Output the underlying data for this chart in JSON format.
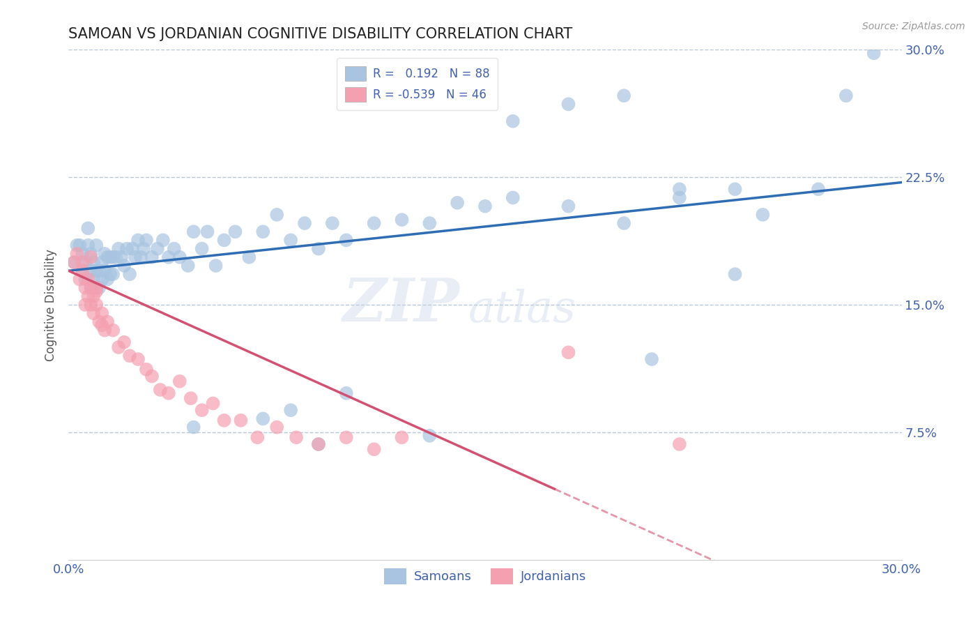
{
  "title": "SAMOAN VS JORDANIAN COGNITIVE DISABILITY CORRELATION CHART",
  "source": "Source: ZipAtlas.com",
  "ylabel": "Cognitive Disability",
  "xmin": 0.0,
  "xmax": 0.3,
  "ymin": 0.0,
  "ymax": 0.3,
  "yticks_right": [
    0.075,
    0.15,
    0.225,
    0.3
  ],
  "ytick_labels_right": [
    "7.5%",
    "15.0%",
    "22.5%",
    "30.0%"
  ],
  "samoan_color": "#a8c4e0",
  "samoan_line_color": "#2e6db4",
  "jordanian_color": "#f4a0b0",
  "jordanian_line_color": "#d45070",
  "background_color": "#ffffff",
  "grid_color": "#b8c8d8",
  "title_color": "#222222",
  "axis_label_color": "#4060b0",
  "watermark_zip": "ZIP",
  "watermark_atlas": "atlas",
  "samoan_x": [
    0.002,
    0.003,
    0.004,
    0.005,
    0.005,
    0.006,
    0.006,
    0.007,
    0.007,
    0.008,
    0.008,
    0.008,
    0.009,
    0.009,
    0.01,
    0.01,
    0.01,
    0.011,
    0.011,
    0.012,
    0.012,
    0.013,
    0.013,
    0.014,
    0.014,
    0.015,
    0.015,
    0.016,
    0.016,
    0.017,
    0.018,
    0.019,
    0.02,
    0.021,
    0.022,
    0.023,
    0.024,
    0.025,
    0.026,
    0.027,
    0.028,
    0.03,
    0.032,
    0.034,
    0.036,
    0.038,
    0.04,
    0.043,
    0.045,
    0.048,
    0.05,
    0.053,
    0.056,
    0.06,
    0.065,
    0.07,
    0.075,
    0.08,
    0.085,
    0.09,
    0.095,
    0.1,
    0.11,
    0.12,
    0.13,
    0.14,
    0.15,
    0.16,
    0.18,
    0.2,
    0.22,
    0.24,
    0.16,
    0.18,
    0.2,
    0.22,
    0.25,
    0.27,
    0.28,
    0.29,
    0.045,
    0.07,
    0.09,
    0.13,
    0.21,
    0.24,
    0.08,
    0.1
  ],
  "samoan_y": [
    0.175,
    0.185,
    0.185,
    0.17,
    0.18,
    0.165,
    0.175,
    0.185,
    0.195,
    0.16,
    0.17,
    0.18,
    0.165,
    0.175,
    0.16,
    0.17,
    0.185,
    0.16,
    0.17,
    0.165,
    0.175,
    0.17,
    0.18,
    0.165,
    0.178,
    0.168,
    0.178,
    0.168,
    0.178,
    0.178,
    0.183,
    0.178,
    0.173,
    0.183,
    0.168,
    0.183,
    0.178,
    0.188,
    0.178,
    0.183,
    0.188,
    0.178,
    0.183,
    0.188,
    0.178,
    0.183,
    0.178,
    0.173,
    0.193,
    0.183,
    0.193,
    0.173,
    0.188,
    0.193,
    0.178,
    0.193,
    0.203,
    0.188,
    0.198,
    0.183,
    0.198,
    0.188,
    0.198,
    0.2,
    0.198,
    0.21,
    0.208,
    0.213,
    0.208,
    0.198,
    0.213,
    0.218,
    0.258,
    0.268,
    0.273,
    0.218,
    0.203,
    0.218,
    0.273,
    0.298,
    0.078,
    0.083,
    0.068,
    0.073,
    0.118,
    0.168,
    0.088,
    0.098
  ],
  "jordanian_x": [
    0.002,
    0.003,
    0.004,
    0.005,
    0.005,
    0.006,
    0.006,
    0.007,
    0.007,
    0.008,
    0.008,
    0.009,
    0.009,
    0.01,
    0.01,
    0.011,
    0.012,
    0.013,
    0.014,
    0.016,
    0.018,
    0.02,
    0.022,
    0.025,
    0.028,
    0.03,
    0.033,
    0.036,
    0.04,
    0.044,
    0.048,
    0.052,
    0.056,
    0.062,
    0.068,
    0.075,
    0.082,
    0.09,
    0.1,
    0.11,
    0.12,
    0.008,
    0.01,
    0.012,
    0.18,
    0.22
  ],
  "jordanian_y": [
    0.175,
    0.18,
    0.165,
    0.17,
    0.175,
    0.15,
    0.16,
    0.155,
    0.165,
    0.15,
    0.16,
    0.145,
    0.155,
    0.15,
    0.16,
    0.14,
    0.145,
    0.135,
    0.14,
    0.135,
    0.125,
    0.128,
    0.12,
    0.118,
    0.112,
    0.108,
    0.1,
    0.098,
    0.105,
    0.095,
    0.088,
    0.092,
    0.082,
    0.082,
    0.072,
    0.078,
    0.072,
    0.068,
    0.072,
    0.065,
    0.072,
    0.178,
    0.158,
    0.138,
    0.122,
    0.068
  ]
}
